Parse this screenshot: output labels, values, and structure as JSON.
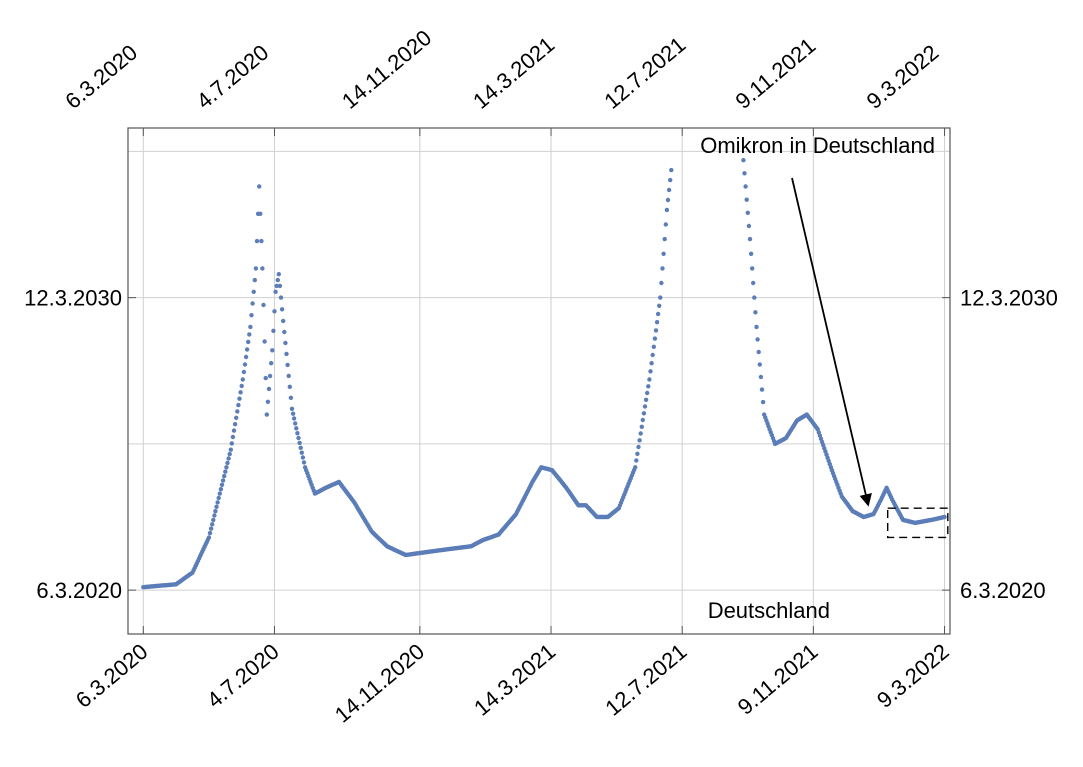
{
  "chart_data": {
    "type": "scatter",
    "title": "",
    "xlabel": "",
    "ylabel": "",
    "grid": true,
    "point_color": "#5B7DB8",
    "x_tick_labels": [
      "6.3.2020",
      "4.7.2020",
      "14.11.2020",
      "14.3.2021",
      "12.7.2021",
      "9.11.2021",
      "9.3.2022"
    ],
    "y_tick_labels": [
      "6.3.2020",
      "12.3.2030"
    ],
    "y_tick_values": [
      0,
      1
    ],
    "ylim": [
      -0.15,
      1.58
    ],
    "xlim": [
      "2020-02-21",
      "2022-03-14"
    ],
    "x_tick_dates": [
      "2020-03-06",
      "2020-07-04",
      "2020-11-14",
      "2021-03-14",
      "2021-07-12",
      "2021-11-09",
      "2022-03-09"
    ],
    "annotations": [
      {
        "text": "Omikron in Deutschland",
        "arrow_to_date": "2021-12-29",
        "arrow_to_value": 0.28
      },
      {
        "text": "Deutschland"
      }
    ],
    "highlight_box": {
      "x_start_date": "2022-01-16",
      "x_end_date": "2022-03-12",
      "y_low": 0.18,
      "y_high": 0.28
    },
    "series": [
      {
        "points": [
          [
            "2020-03-06",
            0.01
          ],
          [
            "2020-04-05",
            0.02
          ],
          [
            "2020-04-20",
            0.06
          ],
          [
            "2020-05-05",
            0.18
          ],
          [
            "2020-05-15",
            0.33
          ],
          [
            "2020-05-25",
            0.48
          ],
          [
            "2020-06-05",
            0.72
          ],
          [
            "2020-06-12",
            0.9
          ],
          [
            "2020-06-17",
            1.1
          ],
          [
            "2020-06-20",
            1.38
          ],
          [
            "2020-06-23",
            1.1
          ],
          [
            "2020-06-27",
            0.6
          ],
          [
            "2020-07-02",
            0.82
          ],
          [
            "2020-07-05",
            1.02
          ],
          [
            "2020-07-08",
            1.08
          ],
          [
            "2020-07-12",
            0.92
          ],
          [
            "2020-07-20",
            0.62
          ],
          [
            "2020-08-01",
            0.42
          ],
          [
            "2020-08-10",
            0.33
          ],
          [
            "2020-08-20",
            0.35
          ],
          [
            "2020-09-01",
            0.37
          ],
          [
            "2020-09-15",
            0.3
          ],
          [
            "2020-10-01",
            0.2
          ],
          [
            "2020-10-15",
            0.15
          ],
          [
            "2020-11-01",
            0.12
          ],
          [
            "2020-11-20",
            0.13
          ],
          [
            "2020-12-10",
            0.14
          ],
          [
            "2020-12-31",
            0.15
          ],
          [
            "2021-01-10",
            0.17
          ],
          [
            "2021-01-25",
            0.19
          ],
          [
            "2021-02-10",
            0.26
          ],
          [
            "2021-02-25",
            0.37
          ],
          [
            "2021-03-05",
            0.42
          ],
          [
            "2021-03-15",
            0.41
          ],
          [
            "2021-03-28",
            0.35
          ],
          [
            "2021-04-08",
            0.29
          ],
          [
            "2021-04-15",
            0.29
          ],
          [
            "2021-04-25",
            0.25
          ],
          [
            "2021-05-05",
            0.25
          ],
          [
            "2021-05-15",
            0.28
          ],
          [
            "2021-05-30",
            0.42
          ],
          [
            "2021-06-12",
            0.72
          ],
          [
            "2021-06-22",
            1.0
          ],
          [
            "2021-06-28",
            1.3
          ],
          [
            "2021-07-03",
            1.47
          ],
          [
            "2021-09-06",
            1.47
          ],
          [
            "2021-09-12",
            1.2
          ],
          [
            "2021-09-18",
            0.9
          ],
          [
            "2021-09-25",
            0.6
          ],
          [
            "2021-10-05",
            0.5
          ],
          [
            "2021-10-15",
            0.52
          ],
          [
            "2021-10-25",
            0.58
          ],
          [
            "2021-11-03",
            0.6
          ],
          [
            "2021-11-13",
            0.55
          ],
          [
            "2021-11-25",
            0.42
          ],
          [
            "2021-12-05",
            0.32
          ],
          [
            "2021-12-15",
            0.27
          ],
          [
            "2021-12-25",
            0.25
          ],
          [
            "2022-01-03",
            0.26
          ],
          [
            "2022-01-10",
            0.31
          ],
          [
            "2022-01-15",
            0.35
          ],
          [
            "2022-01-20",
            0.31
          ],
          [
            "2022-01-30",
            0.24
          ],
          [
            "2022-02-10",
            0.23
          ],
          [
            "2022-02-25",
            0.24
          ],
          [
            "2022-03-09",
            0.25
          ]
        ]
      }
    ]
  }
}
